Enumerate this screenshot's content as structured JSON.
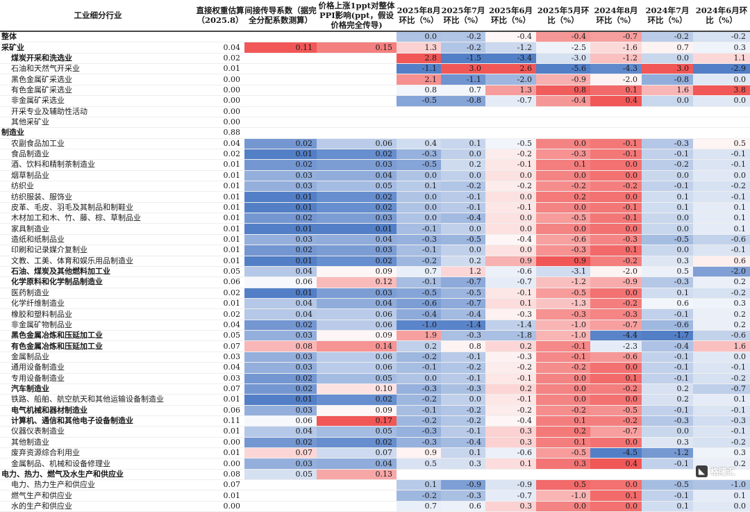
{
  "headers": [
    "工业细分行业",
    "直接权重估算（2025.8）",
    "间接传导系数（据完全分配系数测算）",
    "价格上涨1ppt对整体PPI影响(ppt，假设价格完全传导)",
    "2025年8月环比（%）",
    "2025年7月环比（%）",
    "2025年6月环比（%）",
    "2025年5月环比（%）",
    "2024年8月环比（%）",
    "2024年7月环比（%）",
    "2024年6月环比（%）"
  ],
  "rows": [
    {
      "name": "整体",
      "level": 0,
      "bold": true,
      "cells": [
        "",
        "",
        "",
        "0.0",
        "-0.2",
        "-0.4",
        "-0.4",
        "-0.7",
        "-0.2",
        "-0.2"
      ]
    },
    {
      "name": "采矿业",
      "level": 0,
      "bold": true,
      "cells": [
        "0.04",
        "0.11",
        "0.15",
        "1.3",
        "-0.2",
        "-1.2",
        "-2.5",
        "-1.6",
        "0.7",
        "0.3"
      ]
    },
    {
      "name": "煤炭开采和洗选业",
      "level": 1,
      "bold": true,
      "cells": [
        "0.02",
        "",
        "",
        "2.8",
        "-1.5",
        "-3.4",
        "-3.0",
        "-1.2",
        "0.0",
        "1.1"
      ]
    },
    {
      "name": "石油和天然气开采业",
      "level": 1,
      "bold": false,
      "cells": [
        "0.01",
        "",
        "",
        "-1.1",
        "3.0",
        "2.6",
        "-5.6",
        "-4.3",
        "3.0",
        "-2.9"
      ]
    },
    {
      "name": "黑色金属矿采选业",
      "level": 1,
      "bold": false,
      "cells": [
        "0.00",
        "",
        "",
        "2.1",
        "-1.1",
        "-2.0",
        "-0.9",
        "-2.0",
        "-0.8",
        "0.0"
      ]
    },
    {
      "name": "有色金属矿采选业",
      "level": 1,
      "bold": false,
      "cells": [
        "0.00",
        "",
        "",
        "0.8",
        "0.7",
        "1.3",
        "0.8",
        "0.1",
        "1.6",
        "3.8"
      ]
    },
    {
      "name": "非金属矿采选业",
      "level": 1,
      "bold": false,
      "cells": [
        "0.00",
        "",
        "",
        "-0.5",
        "-0.8",
        "-0.7",
        "-0.4",
        "0.4",
        "0.0",
        "0.0"
      ]
    },
    {
      "name": "开采专业及辅助性活动",
      "level": 1,
      "bold": false,
      "cells": [
        "0.00",
        "",
        "",
        "",
        "",
        "",
        "",
        "",
        "",
        ""
      ]
    },
    {
      "name": "其他采矿业",
      "level": 1,
      "bold": false,
      "cells": [
        "0.00",
        "",
        "",
        "",
        "",
        "",
        "",
        "",
        "",
        ""
      ]
    },
    {
      "name": "制造业",
      "level": 0,
      "bold": true,
      "cells": [
        "0.88",
        "",
        "",
        "",
        "",
        "",
        "",
        "",
        "",
        ""
      ]
    },
    {
      "name": "农副食品加工业",
      "level": 1,
      "bold": false,
      "cells": [
        "0.04",
        "0.02",
        "0.06",
        "0.4",
        "0.1",
        "-0.5",
        "0.0",
        "-0.1",
        "-0.3",
        "0.5"
      ]
    },
    {
      "name": "食品制造业",
      "level": 1,
      "bold": false,
      "cells": [
        "0.02",
        "0.01",
        "0.02",
        "-0.3",
        "0.0",
        "-0.2",
        "-0.3",
        "-0.1",
        "-0.1",
        "-0.1"
      ]
    },
    {
      "name": "酒、饮料和精制茶制造业",
      "level": 1,
      "bold": false,
      "cells": [
        "0.01",
        "0.02",
        "0.03",
        "-0.5",
        "0.2",
        "-0.1",
        "0.1",
        "0.0",
        "-0.2",
        "-0.1"
      ]
    },
    {
      "name": "烟草制品业",
      "level": 1,
      "bold": false,
      "cells": [
        "0.01",
        "0.03",
        "0.04",
        "0.0",
        "0.0",
        "0.0",
        "0.0",
        "0.0",
        "0.0",
        "0.0"
      ]
    },
    {
      "name": "纺织业",
      "level": 1,
      "bold": false,
      "cells": [
        "0.01",
        "0.03",
        "0.05",
        "0.1",
        "-0.2",
        "-0.2",
        "-0.2",
        "-0.2",
        "-0.1",
        "-0.2"
      ]
    },
    {
      "name": "纺织服装、服饰业",
      "level": 1,
      "bold": false,
      "cells": [
        "0.01",
        "0.01",
        "0.02",
        "0.0",
        "-0.1",
        "0.0",
        "0.2",
        "0.0",
        "0.1",
        "-0.1"
      ]
    },
    {
      "name": "皮革、毛皮、羽毛及其制品和制鞋业",
      "level": 1,
      "bold": false,
      "cells": [
        "0.01",
        "0.01",
        "0.02",
        "0.0",
        "-0.1",
        "-0.1",
        "0.0",
        "-0.1",
        "0.1",
        "0.1"
      ]
    },
    {
      "name": "木材加工和木、竹、藤、棕、草制品业",
      "level": 1,
      "bold": false,
      "cells": [
        "0.01",
        "0.02",
        "0.03",
        "0.0",
        "-0.4",
        "0.0",
        "-0.5",
        "-0.1",
        "0.0",
        "0.1"
      ]
    },
    {
      "name": "家具制造业",
      "level": 1,
      "bold": false,
      "cells": [
        "0.01",
        "0.01",
        "0.01",
        "-0.1",
        "0.0",
        "0.0",
        "0.0",
        "0.0",
        "0.0",
        "0.1"
      ]
    },
    {
      "name": "造纸和纸制品业",
      "level": 1,
      "bold": false,
      "cells": [
        "0.01",
        "0.03",
        "0.04",
        "-0.3",
        "-0.5",
        "-0.4",
        "-0.6",
        "-0.3",
        "-0.5",
        "-0.6"
      ]
    },
    {
      "name": "印刷和记录媒介复制业",
      "level": 1,
      "bold": false,
      "cells": [
        "0.01",
        "0.02",
        "0.03",
        "-0.1",
        "0.0",
        "0.0",
        "-0.3",
        "0.1",
        "0.0",
        "-0.1"
      ]
    },
    {
      "name": "文教、工美、体育和娱乐用品制造业",
      "level": 1,
      "bold": false,
      "cells": [
        "0.01",
        "0.01",
        "0.02",
        "-0.2",
        "0.2",
        "0.9",
        "0.9",
        "-0.2",
        "0.3",
        "0.6"
      ]
    },
    {
      "name": "石油、煤炭及其他燃料加工业",
      "level": 1,
      "bold": true,
      "cells": [
        "0.05",
        "0.04",
        "0.09",
        "0.7",
        "1.2",
        "-0.6",
        "-3.1",
        "-2.0",
        "0.5",
        "-2.0"
      ]
    },
    {
      "name": "化学原料和化学制品制造业",
      "level": 1,
      "bold": true,
      "cells": [
        "0.06",
        "0.06",
        "0.12",
        "-0.1",
        "-0.7",
        "-0.7",
        "-1.2",
        "-0.9",
        "-0.3",
        "0.2"
      ]
    },
    {
      "name": "医药制造业",
      "level": 1,
      "bold": false,
      "cells": [
        "0.02",
        "0.01",
        "0.03",
        "-0.5",
        "-0.5",
        "-0.1",
        "-0.5",
        "0.0",
        "0.1",
        "-0.2"
      ]
    },
    {
      "name": "化学纤维制造业",
      "level": 1,
      "bold": false,
      "cells": [
        "0.01",
        "0.04",
        "0.04",
        "-0.6",
        "-0.7",
        "0.1",
        "-1.3",
        "-0.2",
        "0.6",
        "0.3"
      ]
    },
    {
      "name": "橡胶和塑料制品业",
      "level": 1,
      "bold": false,
      "cells": [
        "0.02",
        "0.04",
        "0.06",
        "-0.4",
        "-0.4",
        "-0.3",
        "-0.3",
        "-0.3",
        "-0.1",
        "0.2"
      ]
    },
    {
      "name": "非金属矿物制品业",
      "level": 1,
      "bold": false,
      "cells": [
        "0.04",
        "0.02",
        "0.06",
        "-1.0",
        "-1.4",
        "-1.4",
        "-1.0",
        "-0.7",
        "-0.6",
        "0.2"
      ]
    },
    {
      "name": "黑色金属冶炼和压延加工业",
      "level": 1,
      "bold": true,
      "cells": [
        "0.05",
        "0.03",
        "0.09",
        "1.9",
        "-0.3",
        "-1.8",
        "-1.0",
        "-4.4",
        "-1.7",
        "-0.6"
      ]
    },
    {
      "name": "有色金属冶炼和压延加工业",
      "level": 1,
      "bold": true,
      "cells": [
        "0.07",
        "0.08",
        "0.14",
        "0.2",
        "0.8",
        "0.2",
        "-0.1",
        "-2.3",
        "-0.4",
        "1.6"
      ]
    },
    {
      "name": "金属制品业",
      "level": 1,
      "bold": false,
      "cells": [
        "0.03",
        "0.03",
        "0.06",
        "-0.2",
        "-0.1",
        "-0.3",
        "-0.1",
        "-0.6",
        "-0.1",
        "0.0"
      ]
    },
    {
      "name": "通用设备制造业",
      "level": 1,
      "bold": false,
      "cells": [
        "0.04",
        "0.03",
        "0.06",
        "-0.1",
        "-0.2",
        "-0.2",
        "-0.2",
        "0.0",
        "-0.1",
        "-0.1"
      ]
    },
    {
      "name": "专用设备制造业",
      "level": 1,
      "bold": false,
      "cells": [
        "0.03",
        "0.02",
        "0.05",
        "0.0",
        "-0.1",
        "-0.1",
        "0.0",
        "0.1",
        "-0.1",
        "-0.2"
      ]
    },
    {
      "name": "汽车制造业",
      "level": 1,
      "bold": true,
      "cells": [
        "0.07",
        "0.02",
        "0.10",
        "-0.3",
        "-0.3",
        "0.2",
        "0.0",
        "-0.2",
        "0.2",
        "-0.7"
      ]
    },
    {
      "name": "铁路、船舶、航空航天和其他运输设备制造业",
      "level": 1,
      "bold": false,
      "cells": [
        "0.01",
        "0.01",
        "0.02",
        "-0.2",
        "0.0",
        "-0.1",
        "0.0",
        "0.0",
        "0.2",
        "0.1"
      ]
    },
    {
      "name": "电气机械和器材制造业",
      "level": 1,
      "bold": true,
      "cells": [
        "0.06",
        "0.03",
        "0.09",
        "-0.1",
        "-0.2",
        "-0.2",
        "-0.2",
        "-0.5",
        "-0.1",
        "-0.1"
      ]
    },
    {
      "name": "计算机、通信和其他电子设备制造业",
      "level": 1,
      "bold": true,
      "cells": [
        "0.11",
        "0.06",
        "0.17",
        "-0.2",
        "-0.2",
        "-0.4",
        "0.1",
        "-0.2",
        "-0.3",
        "-0.3"
      ]
    },
    {
      "name": "仪器仪表制造业",
      "level": 1,
      "bold": false,
      "cells": [
        "0.01",
        "0.04",
        "0.05",
        "-0.3",
        "-0.1",
        "0.3",
        "0.2",
        "-0.7",
        "0.0",
        "-0.1"
      ]
    },
    {
      "name": "其他制造业",
      "level": 1,
      "bold": false,
      "cells": [
        "0.00",
        "0.02",
        "0.02",
        "-0.3",
        "-0.4",
        "0.3",
        "0.1",
        "0.0",
        "0.3",
        "-0.2"
      ]
    },
    {
      "name": "废弃资源综合利用业",
      "level": 1,
      "bold": false,
      "cells": [
        "0.01",
        "0.07",
        "0.07",
        "0.9",
        "0.1",
        "-0.6",
        "-0.5",
        "-4.5",
        "-1.2",
        "0.3"
      ]
    },
    {
      "name": "金属制品、机械和设备修理业",
      "level": 1,
      "bold": false,
      "cells": [
        "0.00",
        "0.03",
        "0.04",
        "0.5",
        "0.3",
        "0.1",
        "0.3",
        "0.4",
        "-0.1",
        "0.2"
      ]
    },
    {
      "name": "电力、热力、燃气及水生产和供应业",
      "level": 0,
      "bold": true,
      "cells": [
        "0.08",
        "0.05",
        "0.13",
        "",
        "",
        "",
        "",
        "",
        "",
        ""
      ]
    },
    {
      "name": "电力、热力生产和供应业",
      "level": 1,
      "bold": false,
      "cells": [
        "0.07",
        "",
        "",
        "0.1",
        "-0.9",
        "-0.9",
        "0.5",
        "0.0",
        "-0.5",
        "-1.0"
      ]
    },
    {
      "name": "燃气生产和供应业",
      "level": 1,
      "bold": false,
      "cells": [
        "0.01",
        "",
        "",
        "-0.2",
        "-0.3",
        "-0.7",
        "-1.0",
        "0.1",
        "-0.1",
        "0.1"
      ]
    },
    {
      "name": "水的生产和供应业",
      "level": 1,
      "bold": false,
      "cells": [
        "0.00",
        "",
        "",
        "0.7",
        "0.6",
        "0.3",
        "0.0",
        "0.0",
        "0.1",
        "0.0"
      ]
    }
  ],
  "colors": {
    "positive": "#f04e4e",
    "negative": "#4a78c4",
    "neutral": "#ffffff"
  },
  "logo": {
    "text": "格隆汇"
  }
}
